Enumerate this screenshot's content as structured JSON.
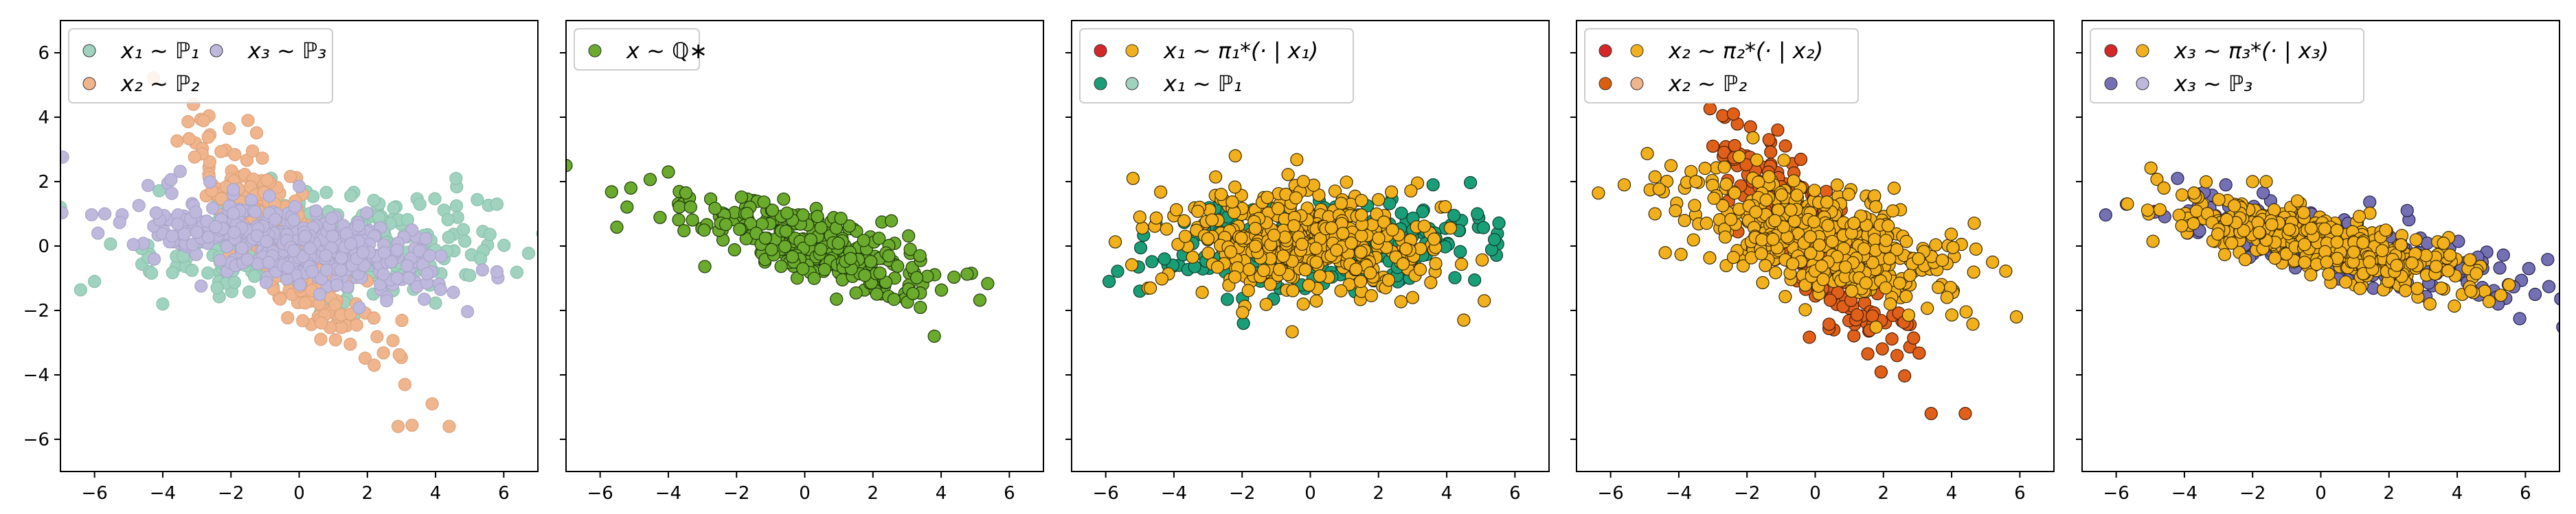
{
  "figure": {
    "panels_count": 5
  },
  "chart_data": [
    {
      "type": "scatter",
      "xlim": [
        -7,
        7
      ],
      "ylim": [
        -7,
        7
      ],
      "xticks": [
        "−6",
        "−4",
        "−2",
        "0",
        "2",
        "4",
        "6"
      ],
      "yticks": [
        "6",
        "4",
        "2",
        "0",
        "−2",
        "−4",
        "−6"
      ],
      "show_yticklabels": true,
      "grid": false,
      "legend": {
        "placement": "top-left",
        "columns": 2,
        "entries": [
          {
            "label": "x₁ ∼ ℙ₁",
            "colors": [
              "#9fd3bf"
            ]
          },
          {
            "label": "x₃ ∼ ℙ₃",
            "colors": [
              "#bdb8dc"
            ]
          },
          {
            "label": "x₂ ∼ ℙ₂",
            "colors": [
              "#f0b58d"
            ]
          }
        ]
      },
      "series": [
        {
          "name": "x₁ ∼ ℙ₁",
          "color": "#9fd3bf",
          "edge": "#8cbfad",
          "cluster": {
            "cx": 0.5,
            "cy": 0,
            "sx": 2.4,
            "sy": 0.75,
            "rho": 0.2,
            "n": 350
          },
          "extremes": [
            [
              -7,
              1.2
            ],
            [
              5.8,
              1.3
            ],
            [
              4.6,
              2.1
            ],
            [
              -6,
              -1.1
            ],
            [
              -4,
              -1.8
            ]
          ]
        },
        {
          "name": "x₂ ∼ ℙ₂",
          "color": "#f0b58d",
          "edge": "#dba27b",
          "cluster": {
            "cx": -0.5,
            "cy": 0.2,
            "sx": 1.3,
            "sy": 1.6,
            "rho": -0.82,
            "n": 350
          },
          "extremes": [
            [
              -3.1,
              4.4
            ],
            [
              -1.5,
              3.9
            ],
            [
              4.4,
              -5.6
            ],
            [
              2.9,
              -5.6
            ],
            [
              3.9,
              -4.9
            ],
            [
              3.1,
              -4.3
            ],
            [
              2.2,
              -3.7
            ]
          ]
        },
        {
          "name": "x₃ ∼ ℙ₃",
          "color": "#bdb8dc",
          "edge": "#a9a4c8",
          "cluster": {
            "cx": 0,
            "cy": 0,
            "sx": 2.2,
            "sy": 0.7,
            "rho": -0.55,
            "n": 400
          },
          "extremes": [
            [
              -5.7,
              1.0
            ],
            [
              5.8,
              -0.8
            ],
            [
              -5.9,
              0.4
            ]
          ]
        }
      ]
    },
    {
      "type": "scatter",
      "xlim": [
        -7,
        7
      ],
      "ylim": [
        -7,
        7
      ],
      "xticks": [
        "−6",
        "−4",
        "−2",
        "0",
        "2",
        "4",
        "6"
      ],
      "yticks": [
        "6",
        "4",
        "2",
        "0",
        "−2",
        "−4",
        "−6"
      ],
      "show_yticklabels": false,
      "grid": false,
      "legend": {
        "placement": "top-left",
        "columns": 1,
        "entries": [
          {
            "label": "x ∼ ℚ∗",
            "colors": [
              "#6aaa2c"
            ]
          }
        ]
      },
      "series": [
        {
          "name": "x ∼ ℚ∗",
          "color": "#6aaa2c",
          "edge": "#1e3a0a",
          "cluster": {
            "cx": 0.3,
            "cy": 0,
            "sx": 1.8,
            "sy": 0.8,
            "rho": -0.72,
            "n": 330
          },
          "extremes": [
            [
              -7,
              2.5
            ],
            [
              -5.1,
              1.8
            ],
            [
              3.8,
              -2.8
            ],
            [
              -4,
              2.3
            ]
          ]
        }
      ]
    },
    {
      "type": "scatter",
      "xlim": [
        -7,
        7
      ],
      "ylim": [
        -7,
        7
      ],
      "xticks": [
        "−6",
        "−4",
        "−2",
        "0",
        "2",
        "4",
        "6"
      ],
      "yticks": [
        "6",
        "4",
        "2",
        "0",
        "−2",
        "−4",
        "−6"
      ],
      "show_yticklabels": false,
      "grid": false,
      "legend": {
        "placement": "top-left",
        "columns": 1,
        "entries": [
          {
            "label": "x₁ ∼ π₁*(· | x₁)",
            "colors": [
              "#d62728",
              "#f2b11c"
            ]
          },
          {
            "label": "x₁ ∼ ℙ₁",
            "colors": [
              "#1a9e77",
              "#9fd3bf"
            ]
          }
        ]
      },
      "series": [
        {
          "name": "x₁ ∼ ℙ₁",
          "color": "#1a9e77",
          "edge": "#0c3f30",
          "cluster": {
            "cx": 0.4,
            "cy": 0,
            "sx": 2.3,
            "sy": 0.7,
            "rho": 0.15,
            "n": 330
          },
          "extremes": [
            [
              -5.9,
              -1.1
            ],
            [
              -5,
              -1.4
            ],
            [
              5.4,
              0.2
            ],
            [
              4.9,
              1.0
            ],
            [
              3.6,
              1.9
            ]
          ]
        },
        {
          "name": "x₁ ∼ π₁*(· | x₁)",
          "color": "#f2b11c",
          "edge": "#3a2a00",
          "cluster": {
            "cx": -0.3,
            "cy": 0.1,
            "sx": 1.9,
            "sy": 0.8,
            "rho": 0.0,
            "n": 450
          },
          "extremes": [
            [
              -5.2,
              2.1
            ],
            [
              -2.2,
              2.8
            ],
            [
              3.0,
              -1.6
            ],
            [
              4.5,
              -2.3
            ],
            [
              5.1,
              -1.7
            ],
            [
              -5.0,
              0.9
            ]
          ]
        }
      ]
    },
    {
      "type": "scatter",
      "xlim": [
        -7,
        7
      ],
      "ylim": [
        -7,
        7
      ],
      "xticks": [
        "−6",
        "−4",
        "−2",
        "0",
        "2",
        "4",
        "6"
      ],
      "yticks": [
        "6",
        "4",
        "2",
        "0",
        "−2",
        "−4",
        "−6"
      ],
      "show_yticklabels": false,
      "grid": false,
      "legend": {
        "placement": "top-left",
        "columns": 1,
        "entries": [
          {
            "label": "x₂ ∼ π₂*(· | x₂)",
            "colors": [
              "#d62728",
              "#f2b11c"
            ]
          },
          {
            "label": "x₂ ∼ ℙ₂",
            "colors": [
              "#d95f0e",
              "#f0b58d"
            ]
          }
        ]
      },
      "series": [
        {
          "name": "x₂ ∼ ℙ₂",
          "color": "#e0601a",
          "edge": "#4a1e05",
          "cluster": {
            "cx": -0.3,
            "cy": 0.3,
            "sx": 1.2,
            "sy": 1.6,
            "rho": -0.83,
            "n": 330
          },
          "extremes": [
            [
              -2.4,
              4.1
            ],
            [
              -1.1,
              3.6
            ],
            [
              3.4,
              -5.2
            ],
            [
              4.4,
              -5.2
            ],
            [
              2.4,
              -3.4
            ],
            [
              -3.0,
              3.1
            ]
          ]
        },
        {
          "name": "x₂ ∼ π₂*(· | x₂)",
          "color": "#f2b11c",
          "edge": "#3a2a00",
          "cluster": {
            "cx": 0,
            "cy": 0.2,
            "sx": 2.0,
            "sy": 1.0,
            "rho": -0.55,
            "n": 450
          },
          "extremes": [
            [
              -5.6,
              1.9
            ],
            [
              -3.5,
              2.0
            ],
            [
              5.9,
              -2.2
            ],
            [
              5.2,
              -0.5
            ],
            [
              -4.7,
              1.0
            ],
            [
              2.2,
              -1.8
            ]
          ]
        }
      ]
    },
    {
      "type": "scatter",
      "xlim": [
        -7,
        7
      ],
      "ylim": [
        -7,
        7
      ],
      "xticks": [
        "−6",
        "−4",
        "−2",
        "0",
        "2",
        "4",
        "6"
      ],
      "yticks": [
        "6",
        "4",
        "2",
        "0",
        "−2",
        "−4",
        "−6"
      ],
      "show_yticklabels": false,
      "grid": false,
      "legend": {
        "placement": "top-left",
        "columns": 1,
        "entries": [
          {
            "label": "x₃ ∼ π₃*(· | x₃)",
            "colors": [
              "#d62728",
              "#f2b11c"
            ]
          },
          {
            "label": "x₃ ∼ ℙ₃",
            "colors": [
              "#7570b3",
              "#bdb8dc"
            ]
          }
        ]
      },
      "series": [
        {
          "name": "x₃ ∼ ℙ₃",
          "color": "#7570b3",
          "edge": "#22204a",
          "cluster": {
            "cx": 0.3,
            "cy": 0,
            "sx": 2.3,
            "sy": 0.7,
            "rho": -0.7,
            "n": 330
          },
          "extremes": [
            [
              -5.7,
              1.3
            ],
            [
              5.5,
              -1.2
            ],
            [
              6.1,
              -0.7
            ],
            [
              5.2,
              -1.8
            ],
            [
              -4.2,
              2.1
            ]
          ]
        },
        {
          "name": "x₃ ∼ π₃*(· | x₃)",
          "color": "#f2b11c",
          "edge": "#3a2a00",
          "cluster": {
            "cx": 0,
            "cy": 0.1,
            "sx": 2.0,
            "sy": 0.65,
            "rho": -0.7,
            "n": 450
          },
          "extremes": [
            [
              -4.6,
              1.8
            ],
            [
              -1.6,
              2.0
            ],
            [
              4.4,
              -1.4
            ],
            [
              3.2,
              -1.8
            ],
            [
              -2.0,
              2.0
            ]
          ]
        }
      ]
    }
  ]
}
